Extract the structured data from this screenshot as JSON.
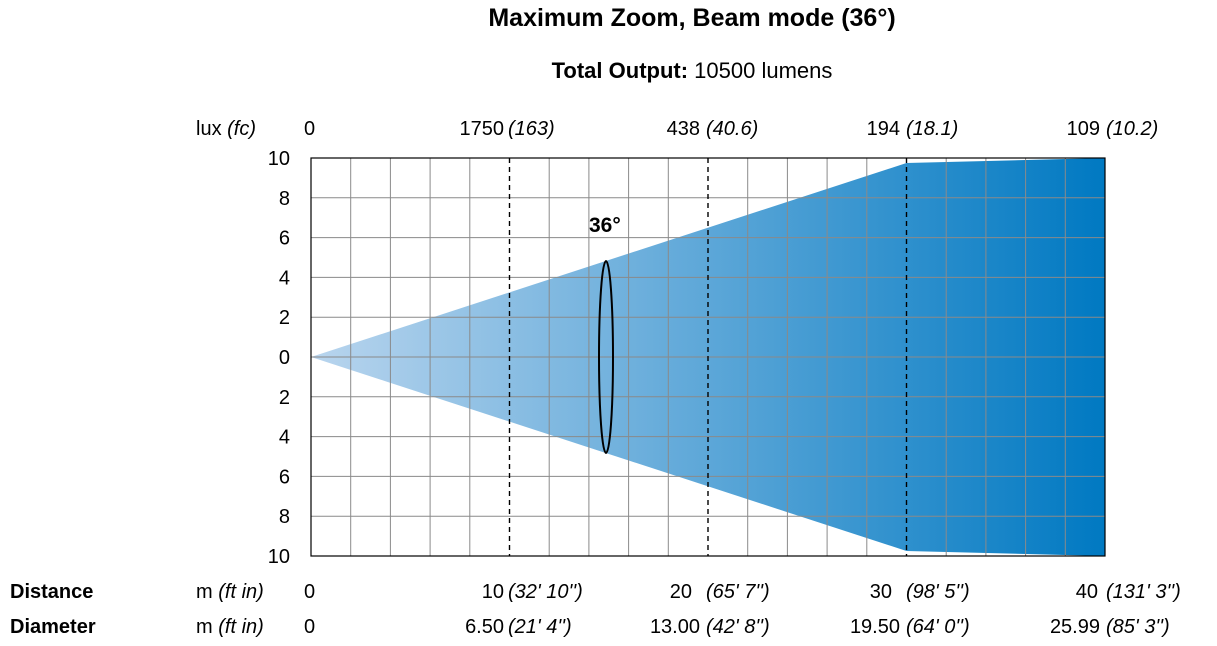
{
  "title": "Maximum Zoom, Beam mode (36°)",
  "subtitle": {
    "label": "Total Output:",
    "value": "10500 lumens"
  },
  "top_row": {
    "unit": "lux",
    "unit_alt": "(fc)",
    "values": [
      {
        "main": "0",
        "alt": ""
      },
      {
        "main": "1750",
        "alt": "(163)"
      },
      {
        "main": "438",
        "alt": "(40.6)"
      },
      {
        "main": "194",
        "alt": "(18.1)"
      },
      {
        "main": "109",
        "alt": "(10.2)"
      }
    ]
  },
  "distance_row": {
    "label": "Distance",
    "unit": "m",
    "unit_alt": "(ft in)",
    "values": [
      {
        "main": "0",
        "alt": ""
      },
      {
        "main": "10",
        "alt": "(32' 10'')"
      },
      {
        "main": "20",
        "alt": "(65' 7'')"
      },
      {
        "main": "30",
        "alt": "(98' 5'')"
      },
      {
        "main": "40",
        "alt": "(131' 3'')"
      }
    ]
  },
  "diameter_row": {
    "label": "Diameter",
    "unit": "m",
    "unit_alt": "(ft in)",
    "values": [
      {
        "main": "0",
        "alt": ""
      },
      {
        "main": "6.50",
        "alt": "(21' 4'')"
      },
      {
        "main": "13.00",
        "alt": "(42' 8'')"
      },
      {
        "main": "19.50",
        "alt": "(64' 0'')"
      },
      {
        "main": "25.99",
        "alt": "(85' 3'')"
      }
    ]
  },
  "chart_data": {
    "type": "area",
    "x_unit": "m",
    "xlim": [
      0,
      40
    ],
    "ylim": [
      -10,
      10
    ],
    "x_grid_step": 2,
    "y_ticks": [
      10,
      8,
      6,
      4,
      2,
      0,
      -2,
      -4,
      -6,
      -8,
      -10
    ],
    "y_tick_labels": [
      "10",
      "8",
      "6",
      "4",
      "2",
      "0",
      "2",
      "4",
      "6",
      "8",
      "10"
    ],
    "beam_angle_label": "36°",
    "beam_edges": [
      {
        "x": 0,
        "y": 0
      },
      {
        "x": 30,
        "y": 9.75
      },
      {
        "x": 40,
        "y": 10
      }
    ],
    "marker_distances": [
      10,
      20,
      30
    ],
    "grid": true,
    "colors": {
      "beam_start": "#b9d5ee",
      "beam_end": "#0079c2",
      "grid": "#8a8a8a"
    }
  }
}
